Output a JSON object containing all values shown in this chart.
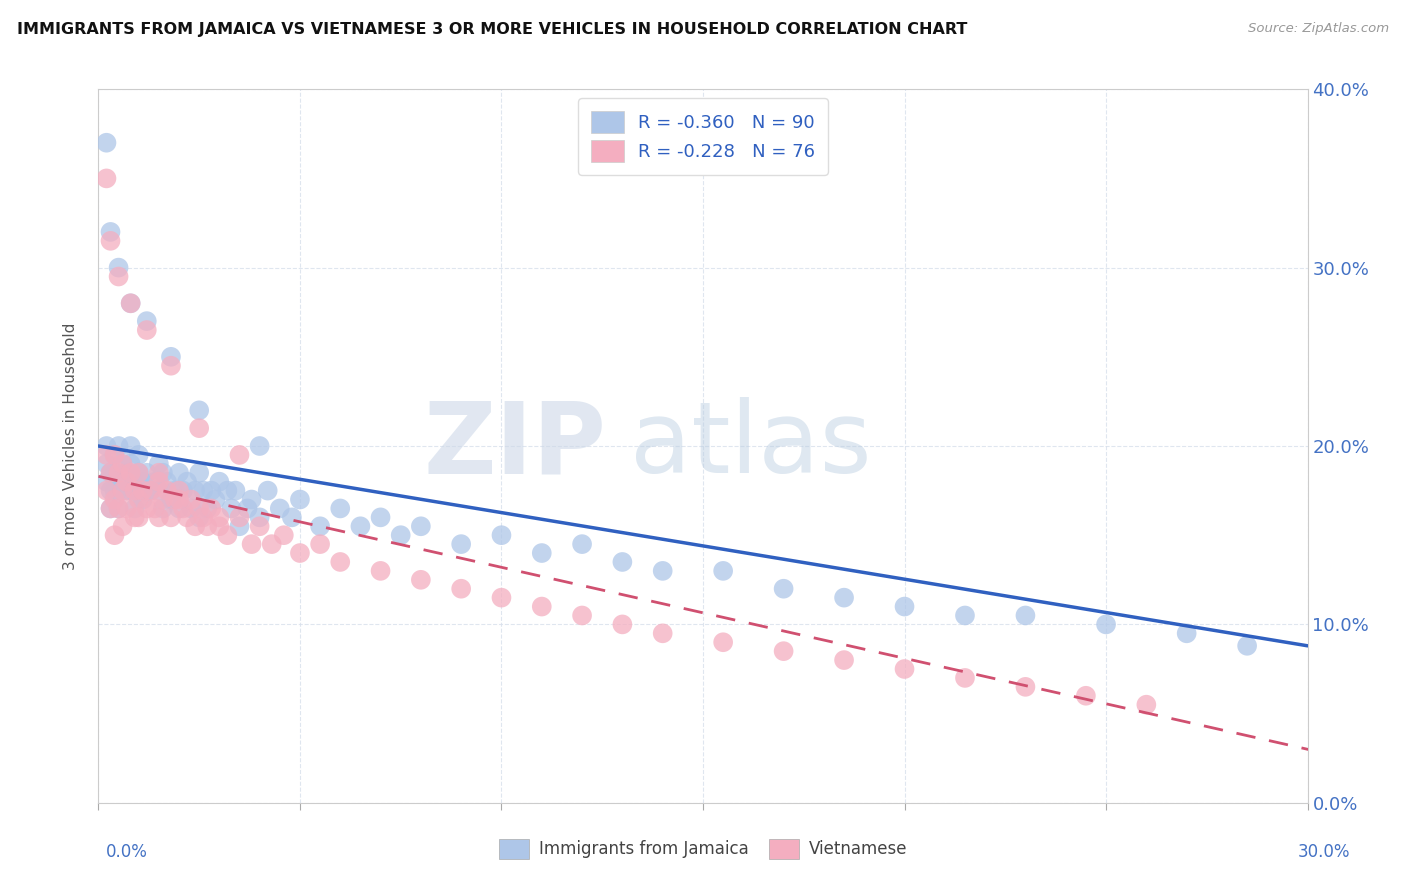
{
  "title": "IMMIGRANTS FROM JAMAICA VS VIETNAMESE 3 OR MORE VEHICLES IN HOUSEHOLD CORRELATION CHART",
  "source": "Source: ZipAtlas.com",
  "ylabel": "3 or more Vehicles in Household",
  "legend_label_jamaica": "Immigrants from Jamaica",
  "legend_label_vietnamese": "Vietnamese",
  "xmin": 0.0,
  "xmax": 0.3,
  "ymin": 0.0,
  "ymax": 0.4,
  "jamaica_R": -0.36,
  "jamaica_N": 90,
  "vietnamese_R": -0.228,
  "vietnamese_N": 76,
  "jamaica_color": "#aec6e8",
  "vietnamese_color": "#f4aec0",
  "trendline_jamaica_color": "#3060c0",
  "trendline_vietnamese_color": "#d05070",
  "watermark_zip_color": "#d0dded",
  "watermark_atlas_color": "#b8cce0",
  "jamaica_trend_x0": 0.0,
  "jamaica_trend_y0": 0.2,
  "jamaica_trend_x1": 0.3,
  "jamaica_trend_y1": 0.088,
  "vietnamese_trend_x0": 0.0,
  "vietnamese_trend_y0": 0.183,
  "vietnamese_trend_x1": 0.3,
  "vietnamese_trend_y1": 0.03,
  "jamaica_x": [
    0.002,
    0.002,
    0.002,
    0.003,
    0.003,
    0.003,
    0.004,
    0.004,
    0.004,
    0.005,
    0.005,
    0.005,
    0.006,
    0.006,
    0.007,
    0.007,
    0.008,
    0.008,
    0.008,
    0.009,
    0.009,
    0.01,
    0.01,
    0.01,
    0.011,
    0.011,
    0.012,
    0.012,
    0.013,
    0.014,
    0.015,
    0.015,
    0.016,
    0.016,
    0.017,
    0.018,
    0.019,
    0.02,
    0.02,
    0.021,
    0.022,
    0.023,
    0.024,
    0.025,
    0.025,
    0.026,
    0.027,
    0.028,
    0.029,
    0.03,
    0.032,
    0.033,
    0.034,
    0.035,
    0.037,
    0.038,
    0.04,
    0.042,
    0.045,
    0.048,
    0.05,
    0.055,
    0.06,
    0.065,
    0.07,
    0.075,
    0.08,
    0.09,
    0.1,
    0.11,
    0.12,
    0.13,
    0.14,
    0.155,
    0.17,
    0.185,
    0.2,
    0.215,
    0.23,
    0.25,
    0.27,
    0.285,
    0.002,
    0.003,
    0.005,
    0.008,
    0.012,
    0.018,
    0.025,
    0.04
  ],
  "jamaica_y": [
    0.19,
    0.18,
    0.2,
    0.185,
    0.175,
    0.165,
    0.195,
    0.175,
    0.185,
    0.2,
    0.165,
    0.175,
    0.19,
    0.18,
    0.175,
    0.185,
    0.2,
    0.175,
    0.19,
    0.18,
    0.165,
    0.195,
    0.175,
    0.185,
    0.18,
    0.17,
    0.175,
    0.185,
    0.175,
    0.18,
    0.19,
    0.175,
    0.185,
    0.165,
    0.18,
    0.17,
    0.175,
    0.185,
    0.165,
    0.175,
    0.18,
    0.165,
    0.175,
    0.185,
    0.16,
    0.175,
    0.165,
    0.175,
    0.17,
    0.18,
    0.175,
    0.165,
    0.175,
    0.155,
    0.165,
    0.17,
    0.16,
    0.175,
    0.165,
    0.16,
    0.17,
    0.155,
    0.165,
    0.155,
    0.16,
    0.15,
    0.155,
    0.145,
    0.15,
    0.14,
    0.145,
    0.135,
    0.13,
    0.13,
    0.12,
    0.115,
    0.11,
    0.105,
    0.105,
    0.1,
    0.095,
    0.088,
    0.37,
    0.32,
    0.3,
    0.28,
    0.27,
    0.25,
    0.22,
    0.2
  ],
  "vietnamese_x": [
    0.002,
    0.002,
    0.003,
    0.003,
    0.004,
    0.004,
    0.005,
    0.005,
    0.006,
    0.006,
    0.007,
    0.007,
    0.008,
    0.009,
    0.009,
    0.01,
    0.01,
    0.011,
    0.012,
    0.013,
    0.014,
    0.015,
    0.015,
    0.016,
    0.017,
    0.018,
    0.019,
    0.02,
    0.021,
    0.022,
    0.023,
    0.024,
    0.025,
    0.026,
    0.027,
    0.028,
    0.03,
    0.032,
    0.035,
    0.038,
    0.04,
    0.043,
    0.046,
    0.05,
    0.055,
    0.06,
    0.07,
    0.08,
    0.09,
    0.1,
    0.11,
    0.12,
    0.13,
    0.14,
    0.155,
    0.17,
    0.185,
    0.2,
    0.215,
    0.23,
    0.245,
    0.26,
    0.002,
    0.003,
    0.005,
    0.008,
    0.012,
    0.018,
    0.025,
    0.035,
    0.004,
    0.006,
    0.01,
    0.015,
    0.02,
    0.03
  ],
  "vietnamese_y": [
    0.195,
    0.175,
    0.185,
    0.165,
    0.195,
    0.17,
    0.185,
    0.165,
    0.19,
    0.175,
    0.18,
    0.165,
    0.185,
    0.175,
    0.16,
    0.185,
    0.17,
    0.175,
    0.165,
    0.175,
    0.165,
    0.185,
    0.16,
    0.17,
    0.175,
    0.16,
    0.17,
    0.175,
    0.165,
    0.16,
    0.17,
    0.155,
    0.165,
    0.16,
    0.155,
    0.165,
    0.155,
    0.15,
    0.16,
    0.145,
    0.155,
    0.145,
    0.15,
    0.14,
    0.145,
    0.135,
    0.13,
    0.125,
    0.12,
    0.115,
    0.11,
    0.105,
    0.1,
    0.095,
    0.09,
    0.085,
    0.08,
    0.075,
    0.07,
    0.065,
    0.06,
    0.055,
    0.35,
    0.315,
    0.295,
    0.28,
    0.265,
    0.245,
    0.21,
    0.195,
    0.15,
    0.155,
    0.16,
    0.18,
    0.17,
    0.16
  ]
}
